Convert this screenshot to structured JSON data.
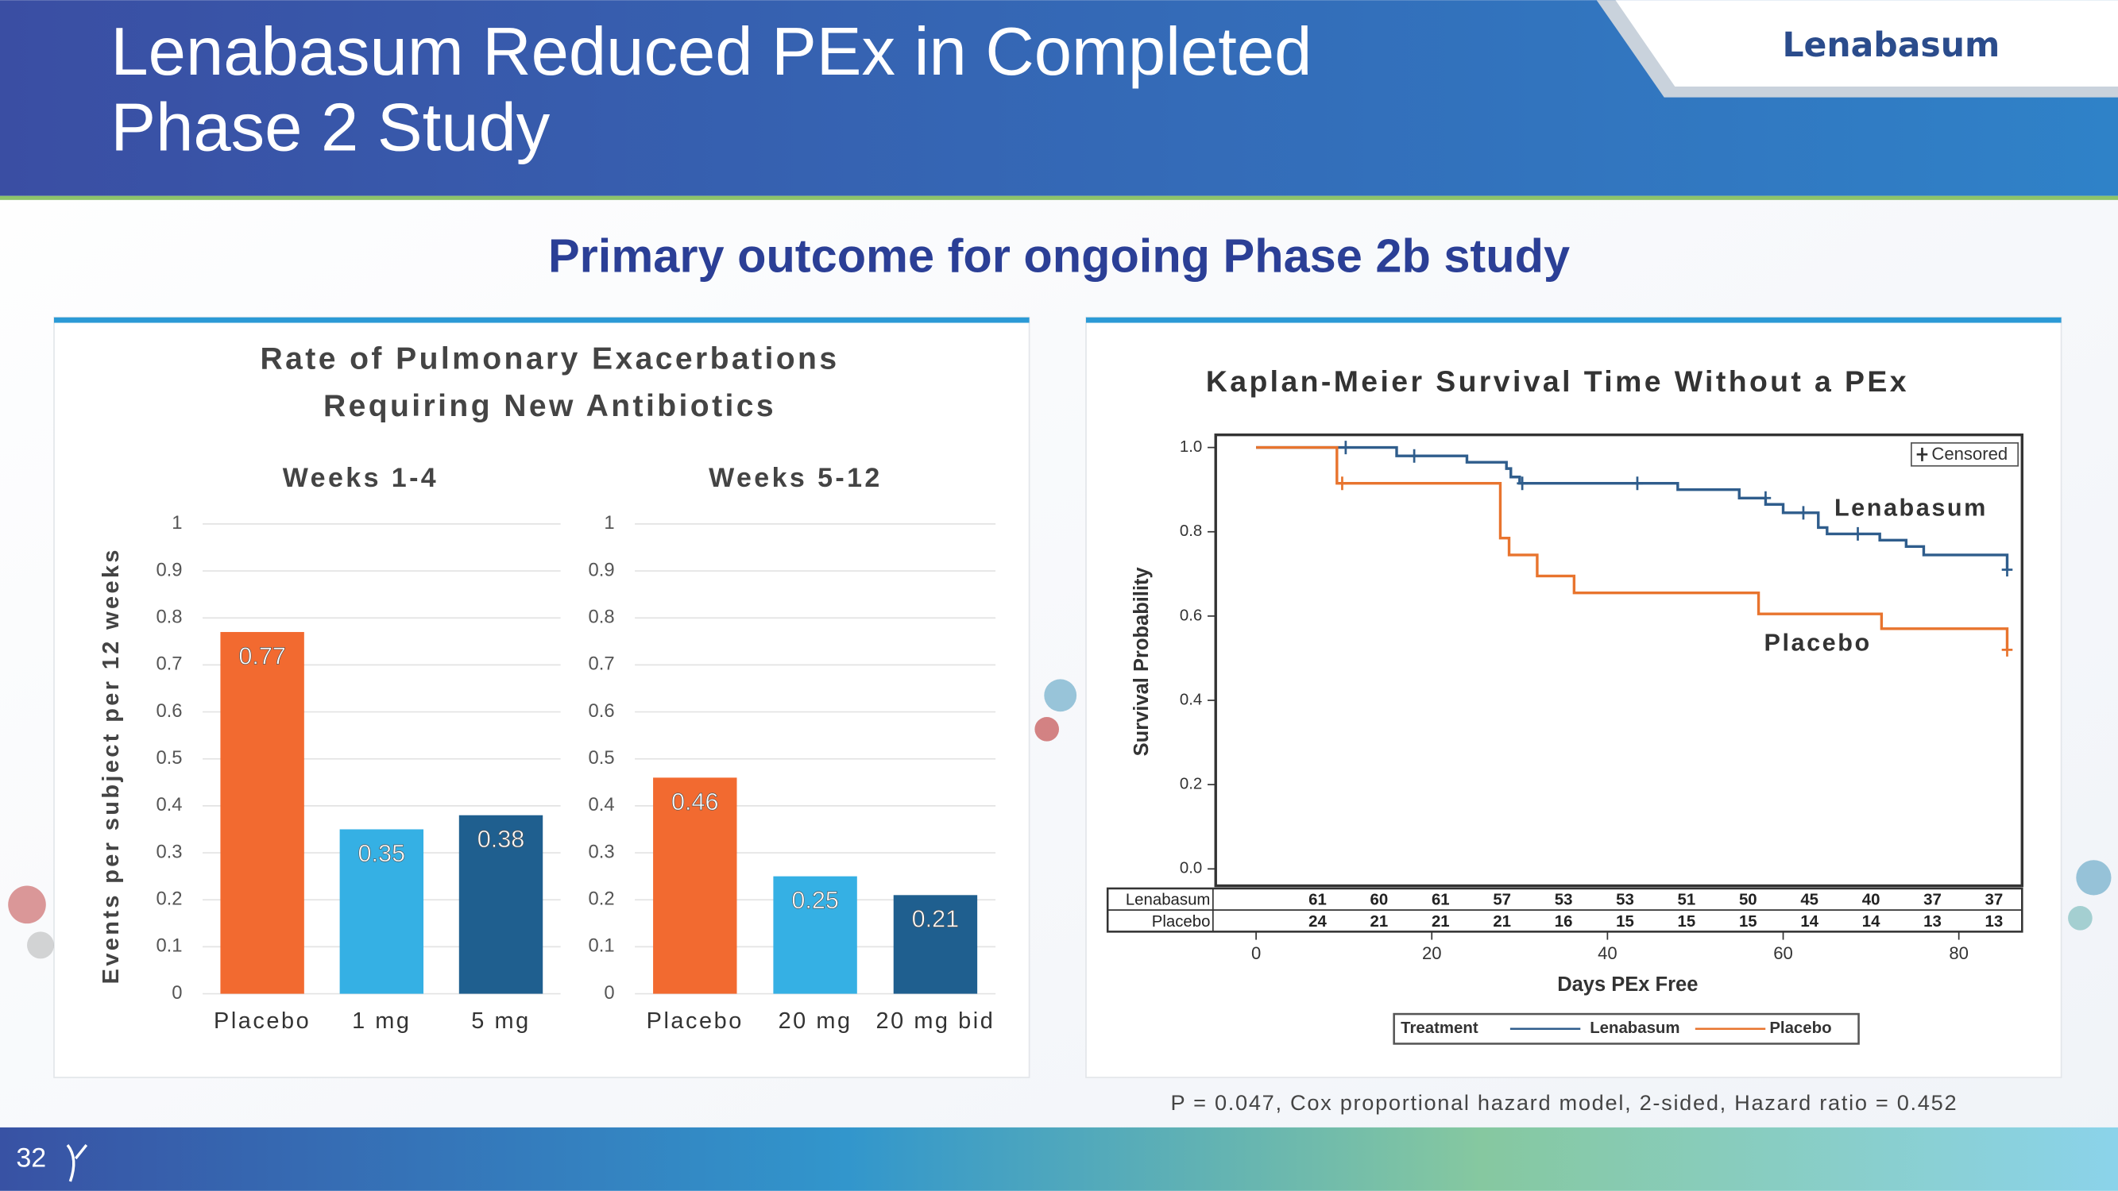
{
  "header": {
    "title": [
      "Lenabasum Reduced PEx in Completed",
      "Phase 2 Study"
    ],
    "brand": "Lenabasum",
    "subtitle": "Primary outcome for ongoing Phase 2b study",
    "page_number": "32"
  },
  "footnote": "P = 0.047, Cox proportional hazard model, 2-sided, Hazard ratio = 0.452",
  "chart_data": [
    {
      "type": "bar",
      "title": [
        "Rate of Pulmonary Exacerbations",
        "Requiring New Antibiotics"
      ],
      "subtitle": "Weeks 1-4",
      "ylabel": "Events per subject per 12 weeks",
      "categories": [
        "Placebo",
        "1 mg",
        "5 mg"
      ],
      "values": [
        0.77,
        0.35,
        0.38
      ],
      "colors": [
        "#f26a30",
        "#35b0e4",
        "#1f5f8f"
      ],
      "ylim": [
        0,
        1
      ],
      "yticks": [
        0,
        0.1,
        0.2,
        0.3,
        0.4,
        0.5,
        0.6,
        0.7,
        0.8,
        0.9,
        1
      ],
      "grid": true
    },
    {
      "type": "bar",
      "subtitle": "Weeks 5-12",
      "categories": [
        "Placebo",
        "20 mg",
        "20 mg bid"
      ],
      "values": [
        0.46,
        0.25,
        0.21
      ],
      "colors": [
        "#f26a30",
        "#35b0e4",
        "#1f5f8f"
      ],
      "ylim": [
        0,
        1
      ],
      "yticks": [
        0,
        0.1,
        0.2,
        0.3,
        0.4,
        0.5,
        0.6,
        0.7,
        0.8,
        0.9,
        1
      ],
      "grid": true
    },
    {
      "type": "line",
      "title": "Kaplan-Meier Survival Time Without a PEx",
      "xlabel": "Days PEx Free",
      "ylabel": "Survival Probability",
      "xlim": [
        -4.6,
        87.2
      ],
      "ylim": [
        -0.04,
        1.03
      ],
      "xticks": [
        0,
        20,
        40,
        60,
        80
      ],
      "yticks": [
        {
          "value": 0,
          "label": "0.0"
        },
        0.2,
        0.4,
        0.6,
        0.8,
        {
          "value": 1,
          "label": "1.0"
        }
      ],
      "legend_title": "Treatment",
      "censored_label": "Censored",
      "series": [
        {
          "name": "Lenabasum",
          "color": "#2f5d8c",
          "x": [
            0,
            16,
            16,
            24,
            24,
            28.5,
            28.5,
            29,
            29,
            30,
            30,
            48,
            48,
            55,
            55,
            58,
            58,
            60,
            60,
            64,
            64,
            65,
            65,
            71,
            71,
            74,
            74,
            76,
            76,
            85.5,
            85.5
          ],
          "values": [
            1,
            1,
            0.98,
            0.98,
            0.965,
            0.965,
            0.95,
            0.95,
            0.93,
            0.93,
            0.915,
            0.915,
            0.9,
            0.9,
            0.88,
            0.88,
            0.865,
            0.865,
            0.845,
            0.845,
            0.81,
            0.81,
            0.795,
            0.795,
            0.78,
            0.78,
            0.765,
            0.765,
            0.745,
            0.745,
            0.71
          ],
          "censored_x": [
            10.2,
            18,
            30.3,
            43.4,
            58,
            62.3,
            68.5,
            85.5
          ],
          "censored_values": [
            1,
            0.98,
            0.915,
            0.915,
            0.88,
            0.845,
            0.795,
            0.71
          ]
        },
        {
          "name": "Placebo",
          "color": "#e8742e",
          "x": [
            0,
            9.2,
            9.2,
            27.8,
            27.8,
            28.8,
            28.8,
            32,
            32,
            36.2,
            36.2,
            57.2,
            57.2,
            71.2,
            71.2,
            85.5,
            85.5
          ],
          "values": [
            1,
            1,
            0.915,
            0.915,
            0.785,
            0.785,
            0.745,
            0.745,
            0.695,
            0.695,
            0.655,
            0.655,
            0.605,
            0.605,
            0.57,
            0.57,
            0.52
          ],
          "censored_x": [
            9.8,
            85.5
          ],
          "censored_values": [
            0.915,
            0.52
          ]
        }
      ],
      "risk_table": {
        "x": [
          7,
          14,
          21,
          28,
          35,
          42,
          49,
          56,
          63,
          70,
          77,
          84
        ],
        "rows": [
          {
            "name": "Lenabasum",
            "values": [
              61,
              60,
              61,
              57,
              53,
              53,
              51,
              50,
              45,
              40,
              37,
              37
            ]
          },
          {
            "name": "Placebo",
            "values": [
              24,
              21,
              21,
              21,
              16,
              15,
              15,
              15,
              14,
              14,
              13,
              13
            ]
          }
        ]
      }
    }
  ]
}
